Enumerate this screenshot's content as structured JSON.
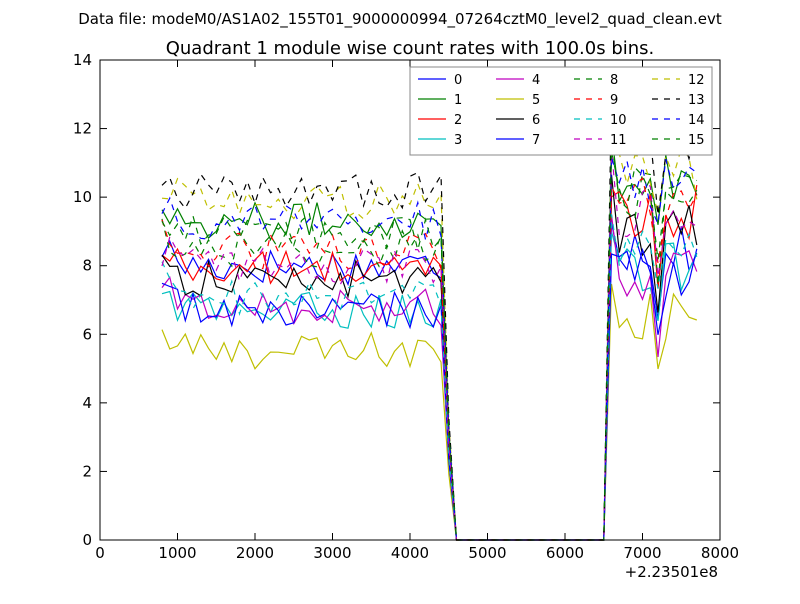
{
  "suptitle": "Data file: modeM0/AS1A02_155T01_9000000994_07264cztM0_level2_quad_clean.evt",
  "chart_data": {
    "type": "line",
    "title": "Quadrant 1 module wise count rates with 100.0s bins.",
    "xlabel": "",
    "ylabel": "",
    "x_offset_label": "+2.23501e8",
    "xlim": [
      0,
      8000
    ],
    "ylim": [
      0,
      14
    ],
    "x_ticks": [
      0,
      1000,
      2000,
      3000,
      4000,
      5000,
      6000,
      7000,
      8000
    ],
    "y_ticks": [
      0,
      2,
      4,
      6,
      8,
      10,
      12,
      14
    ],
    "grid": false,
    "legend_position": "top-right",
    "legend_columns": 4,
    "x_segment_a": [
      800,
      900,
      1000,
      1100,
      1200,
      1300,
      1400,
      1500,
      1600,
      1700,
      1800,
      1900,
      2000,
      2100,
      2200,
      2300,
      2400,
      2500,
      2600,
      2700,
      2800,
      2900,
      3000,
      3100,
      3200,
      3300,
      3400,
      3500,
      3600,
      3700,
      3800,
      3900,
      4000,
      4100,
      4200,
      4300,
      4400,
      4500,
      4600
    ],
    "x_gap": [
      4700,
      4800,
      4900,
      5000,
      5100,
      5200,
      5300,
      5400,
      5500,
      5600,
      5700,
      5800,
      5900,
      6000,
      6100,
      6200,
      6300,
      6400,
      6500
    ],
    "x_segment_b": [
      6600,
      6700,
      6800,
      6900,
      7000,
      7100,
      7200,
      7300,
      7400,
      7500,
      7600,
      7700
    ],
    "series": [
      {
        "name": "0",
        "color": "#0000ff",
        "dash": "solid",
        "level_a": 8.0,
        "level_b": 8.6
      },
      {
        "name": "1",
        "color": "#008000",
        "dash": "solid",
        "level_a": 9.3,
        "level_b": 10.6
      },
      {
        "name": "2",
        "color": "#ff0000",
        "dash": "solid",
        "level_a": 7.9,
        "level_b": 9.6
      },
      {
        "name": "3",
        "color": "#00bfbf",
        "dash": "solid",
        "level_a": 6.7,
        "level_b": 7.9
      },
      {
        "name": "4",
        "color": "#bf00bf",
        "dash": "solid",
        "level_a": 6.8,
        "level_b": 7.7
      },
      {
        "name": "5",
        "color": "#bfbf00",
        "dash": "solid",
        "level_a": 5.5,
        "level_b": 6.6
      },
      {
        "name": "6",
        "color": "#000000",
        "dash": "solid",
        "level_a": 7.6,
        "level_b": 9.1
      },
      {
        "name": "7",
        "color": "#0000ff",
        "dash": "solid",
        "level_a": 6.7,
        "level_b": 7.7
      },
      {
        "name": "8",
        "color": "#008000",
        "dash": "dashed",
        "level_a": 8.5,
        "level_b": 10.0
      },
      {
        "name": "9",
        "color": "#ff0000",
        "dash": "dashed",
        "level_a": 8.4,
        "level_b": 9.9
      },
      {
        "name": "10",
        "color": "#00bfbf",
        "dash": "dashed",
        "level_a": 7.1,
        "level_b": 8.4
      },
      {
        "name": "11",
        "color": "#bf00bf",
        "dash": "dashed",
        "level_a": 8.0,
        "level_b": 9.6
      },
      {
        "name": "12",
        "color": "#bfbf00",
        "dash": "dashed",
        "level_a": 9.9,
        "level_b": 10.7
      },
      {
        "name": "13",
        "color": "#000000",
        "dash": "dashed",
        "level_a": 10.2,
        "level_b": 11.5
      },
      {
        "name": "14",
        "color": "#0000ff",
        "dash": "dashed",
        "level_a": 9.3,
        "level_b": 10.5
      },
      {
        "name": "15",
        "color": "#008000",
        "dash": "dashed",
        "level_a": 9.0,
        "level_b": 10.3
      }
    ]
  }
}
